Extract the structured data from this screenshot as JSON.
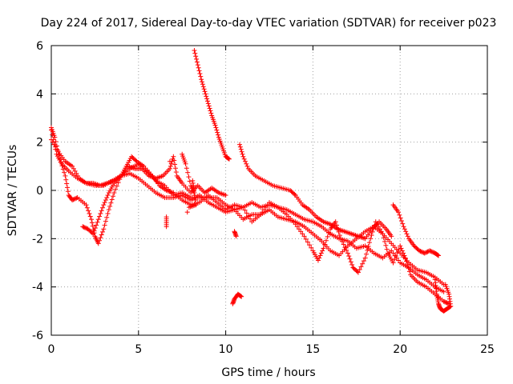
{
  "chart_data": {
    "type": "scatter",
    "title": "Day 224 of 2017, Sidereal Day-to-day VTEC variation (SDTVAR) for receiver p023",
    "xlabel": "GPS time / hours",
    "ylabel": "SDTVAR / TECUs",
    "xlim": [
      0,
      25
    ],
    "ylim": [
      -6,
      6
    ],
    "xticks": [
      "0",
      "5",
      "10",
      "15",
      "20",
      "25"
    ],
    "yticks": [
      "-6",
      "-4",
      "-2",
      "0",
      "2",
      "4",
      "6"
    ],
    "grid": true,
    "marker": "+",
    "color": "#ff0000",
    "series": [
      {
        "name": "s1",
        "points": [
          [
            0.0,
            2.5
          ],
          [
            0.3,
            1.5
          ],
          [
            0.6,
            1.1
          ],
          [
            1.0,
            0.8
          ],
          [
            1.5,
            0.5
          ],
          [
            2.0,
            0.3
          ],
          [
            2.5,
            0.2
          ],
          [
            3.0,
            0.2
          ],
          [
            3.5,
            0.4
          ],
          [
            4.0,
            0.6
          ],
          [
            4.5,
            0.9
          ],
          [
            5.0,
            1.1
          ],
          [
            5.5,
            0.8
          ],
          [
            6.0,
            0.4
          ],
          [
            6.5,
            0.2
          ],
          [
            7.0,
            -0.2
          ],
          [
            7.5,
            -0.1
          ],
          [
            8.0,
            -0.3
          ],
          [
            8.5,
            -0.3
          ],
          [
            9.0,
            -0.3
          ],
          [
            9.5,
            -0.3
          ],
          [
            10.0,
            -0.6
          ],
          [
            10.5,
            -0.8
          ],
          [
            11.0,
            -0.7
          ],
          [
            11.5,
            -0.5
          ],
          [
            12.0,
            -0.7
          ],
          [
            12.5,
            -0.6
          ],
          [
            13.0,
            -0.7
          ],
          [
            13.5,
            -0.8
          ],
          [
            14.0,
            -1.0
          ],
          [
            14.5,
            -1.2
          ],
          [
            15.0,
            -1.3
          ],
          [
            15.5,
            -1.5
          ],
          [
            16.0,
            -1.8
          ],
          [
            16.5,
            -2.0
          ],
          [
            17.0,
            -2.1
          ],
          [
            17.5,
            -2.4
          ],
          [
            18.0,
            -2.3
          ],
          [
            18.5,
            -2.6
          ],
          [
            19.0,
            -2.8
          ],
          [
            19.5,
            -2.5
          ],
          [
            20.0,
            -3.0
          ],
          [
            20.5,
            -3.2
          ],
          [
            21.0,
            -3.5
          ],
          [
            21.5,
            -3.7
          ],
          [
            22.0,
            -4.0
          ],
          [
            22.5,
            -4.2
          ]
        ]
      },
      {
        "name": "s2",
        "points": [
          [
            0.0,
            2.6
          ],
          [
            0.2,
            2.2
          ],
          [
            0.5,
            1.3
          ],
          [
            0.8,
            0.6
          ],
          [
            1.0,
            -0.2
          ],
          [
            1.2,
            -0.4
          ],
          [
            1.5,
            -0.3
          ],
          [
            2.0,
            -0.6
          ],
          [
            2.3,
            -1.2
          ],
          [
            2.5,
            -1.9
          ],
          [
            2.7,
            -2.2
          ],
          [
            3.0,
            -1.6
          ],
          [
            3.3,
            -0.8
          ],
          [
            3.6,
            -0.1
          ],
          [
            4.0,
            0.6
          ],
          [
            4.3,
            1.0
          ],
          [
            4.6,
            1.4
          ],
          [
            4.9,
            1.2
          ],
          [
            5.3,
            1.0
          ],
          [
            5.8,
            0.6
          ],
          [
            6.2,
            0.2
          ],
          [
            6.6,
            0.0
          ],
          [
            7.0,
            -0.1
          ],
          [
            7.5,
            -0.4
          ],
          [
            8.0,
            -0.6
          ],
          [
            8.5,
            -0.5
          ],
          [
            9.0,
            -0.2
          ],
          [
            9.5,
            -0.5
          ],
          [
            10.0,
            -0.8
          ],
          [
            10.5,
            -0.6
          ],
          [
            11.0,
            -0.7
          ],
          [
            11.5,
            -1.3
          ],
          [
            12.0,
            -1.0
          ],
          [
            12.5,
            -0.5
          ],
          [
            13.0,
            -0.7
          ],
          [
            13.5,
            -1.0
          ],
          [
            14.0,
            -1.4
          ],
          [
            14.5,
            -1.9
          ],
          [
            15.0,
            -2.5
          ],
          [
            15.3,
            -2.9
          ],
          [
            15.6,
            -2.4
          ],
          [
            16.0,
            -1.6
          ],
          [
            16.3,
            -1.3
          ],
          [
            16.6,
            -2.0
          ],
          [
            17.0,
            -2.6
          ],
          [
            17.3,
            -3.2
          ],
          [
            17.6,
            -3.4
          ],
          [
            18.0,
            -2.8
          ],
          [
            18.3,
            -2.0
          ],
          [
            18.6,
            -1.3
          ],
          [
            19.0,
            -1.8
          ],
          [
            19.3,
            -2.6
          ],
          [
            19.6,
            -3.0
          ],
          [
            20.0,
            -2.3
          ],
          [
            20.3,
            -2.8
          ],
          [
            20.6,
            -3.5
          ],
          [
            21.0,
            -3.8
          ],
          [
            21.5,
            -4.0
          ],
          [
            22.0,
            -4.3
          ],
          [
            22.5,
            -4.6
          ],
          [
            22.8,
            -4.7
          ]
        ]
      },
      {
        "name": "s3",
        "points": [
          [
            1.8,
            -1.5
          ],
          [
            2.1,
            -1.6
          ],
          [
            2.4,
            -1.8
          ],
          [
            2.7,
            -1.2
          ],
          [
            3.0,
            -0.6
          ],
          [
            3.3,
            -0.1
          ],
          [
            3.6,
            0.3
          ],
          [
            4.0,
            0.6
          ],
          [
            4.5,
            0.7
          ],
          [
            5.0,
            0.5
          ],
          [
            5.5,
            0.2
          ],
          [
            6.0,
            -0.1
          ],
          [
            6.5,
            -0.3
          ],
          [
            7.0,
            -0.3
          ],
          [
            7.5,
            -0.2
          ],
          [
            8.0,
            -0.4
          ],
          [
            8.5,
            -0.2
          ],
          [
            9.0,
            -0.5
          ],
          [
            9.5,
            -0.7
          ],
          [
            10.0,
            -0.9
          ],
          [
            10.5,
            -0.8
          ],
          [
            11.0,
            -1.2
          ],
          [
            11.5,
            -1.0
          ],
          [
            12.0,
            -1.0
          ],
          [
            12.5,
            -0.8
          ],
          [
            13.0,
            -1.1
          ],
          [
            13.5,
            -1.2
          ],
          [
            14.0,
            -1.3
          ],
          [
            14.5,
            -1.5
          ],
          [
            15.0,
            -1.8
          ],
          [
            15.5,
            -2.1
          ],
          [
            16.0,
            -2.5
          ],
          [
            16.5,
            -2.7
          ],
          [
            17.0,
            -2.3
          ],
          [
            17.5,
            -2.0
          ],
          [
            18.0,
            -1.7
          ],
          [
            18.5,
            -1.5
          ],
          [
            19.0,
            -1.8
          ],
          [
            19.5,
            -2.2
          ],
          [
            20.0,
            -2.6
          ],
          [
            20.5,
            -3.0
          ],
          [
            21.0,
            -3.3
          ],
          [
            21.5,
            -3.4
          ],
          [
            22.0,
            -3.6
          ],
          [
            22.5,
            -3.9
          ]
        ]
      },
      {
        "name": "s4",
        "points": [
          [
            0.0,
            2.1
          ],
          [
            0.4,
            1.6
          ],
          [
            0.8,
            1.2
          ],
          [
            1.2,
            1.0
          ],
          [
            1.6,
            0.5
          ],
          [
            2.0,
            0.3
          ],
          [
            2.4,
            0.3
          ],
          [
            2.8,
            0.2
          ],
          [
            3.2,
            0.3
          ],
          [
            3.6,
            0.4
          ],
          [
            4.0,
            0.6
          ],
          [
            4.4,
            1.0
          ],
          [
            4.8,
            0.9
          ],
          [
            5.2,
            0.9
          ],
          [
            5.6,
            0.6
          ],
          [
            6.0,
            0.5
          ],
          [
            6.4,
            0.6
          ],
          [
            6.8,
            0.9
          ],
          [
            7.0,
            1.4
          ],
          [
            7.2,
            0.6
          ],
          [
            7.5,
            0.3
          ],
          [
            8.0,
            -0.1
          ],
          [
            8.4,
            0.2
          ],
          [
            8.8,
            -0.1
          ],
          [
            9.2,
            0.1
          ],
          [
            9.6,
            -0.1
          ],
          [
            10.0,
            -0.2
          ]
        ]
      },
      {
        "name": "s5",
        "points": [
          [
            8.2,
            5.8
          ],
          [
            8.4,
            5.2
          ],
          [
            8.6,
            4.6
          ],
          [
            8.8,
            4.1
          ],
          [
            9.0,
            3.6
          ],
          [
            9.2,
            3.1
          ],
          [
            9.4,
            2.7
          ],
          [
            9.6,
            2.2
          ],
          [
            9.8,
            1.8
          ],
          [
            10.0,
            1.4
          ],
          [
            10.2,
            1.3
          ]
        ]
      },
      {
        "name": "s6",
        "points": [
          [
            10.8,
            1.9
          ],
          [
            11.0,
            1.4
          ],
          [
            11.3,
            0.9
          ],
          [
            11.7,
            0.6
          ],
          [
            12.2,
            0.4
          ],
          [
            12.7,
            0.2
          ],
          [
            13.2,
            0.1
          ],
          [
            13.7,
            0.0
          ],
          [
            14.0,
            -0.2
          ],
          [
            14.4,
            -0.6
          ],
          [
            14.8,
            -0.8
          ],
          [
            15.2,
            -1.1
          ],
          [
            15.6,
            -1.3
          ],
          [
            16.0,
            -1.4
          ],
          [
            16.4,
            -1.6
          ],
          [
            16.8,
            -1.7
          ],
          [
            17.2,
            -1.8
          ],
          [
            17.6,
            -1.9
          ],
          [
            18.0,
            -2.0
          ],
          [
            18.4,
            -1.6
          ],
          [
            18.8,
            -1.3
          ],
          [
            19.2,
            -1.6
          ],
          [
            19.5,
            -1.9
          ]
        ]
      },
      {
        "name": "s7",
        "points": [
          [
            19.6,
            -0.6
          ],
          [
            19.9,
            -0.9
          ],
          [
            20.2,
            -1.5
          ],
          [
            20.5,
            -2.0
          ],
          [
            20.8,
            -2.3
          ],
          [
            21.1,
            -2.5
          ],
          [
            21.4,
            -2.6
          ],
          [
            21.7,
            -2.5
          ],
          [
            22.0,
            -2.6
          ],
          [
            22.2,
            -2.7
          ]
        ]
      },
      {
        "name": "s8",
        "points": [
          [
            22.0,
            -3.7
          ],
          [
            22.1,
            -4.3
          ],
          [
            22.2,
            -4.7
          ],
          [
            22.3,
            -4.9
          ],
          [
            22.5,
            -5.0
          ],
          [
            22.7,
            -4.9
          ],
          [
            22.9,
            -4.8
          ],
          [
            22.8,
            -4.3
          ],
          [
            22.6,
            -3.9
          ]
        ]
      },
      {
        "name": "s9",
        "points": [
          [
            10.4,
            -4.7
          ],
          [
            10.5,
            -4.5
          ],
          [
            10.7,
            -4.3
          ],
          [
            10.9,
            -4.4
          ],
          [
            6.6,
            -1.1
          ],
          [
            6.6,
            -1.5
          ],
          [
            7.8,
            -0.9
          ],
          [
            10.5,
            -1.7
          ],
          [
            10.6,
            -1.9
          ],
          [
            6.8,
            1.2
          ],
          [
            7.5,
            1.5
          ],
          [
            7.7,
            1.1
          ],
          [
            8.0,
            0.2
          ],
          [
            8.2,
            -0.1
          ],
          [
            8.1,
            0.4
          ],
          [
            8.3,
            -0.6
          ],
          [
            7.9,
            -0.7
          ]
        ]
      }
    ]
  }
}
